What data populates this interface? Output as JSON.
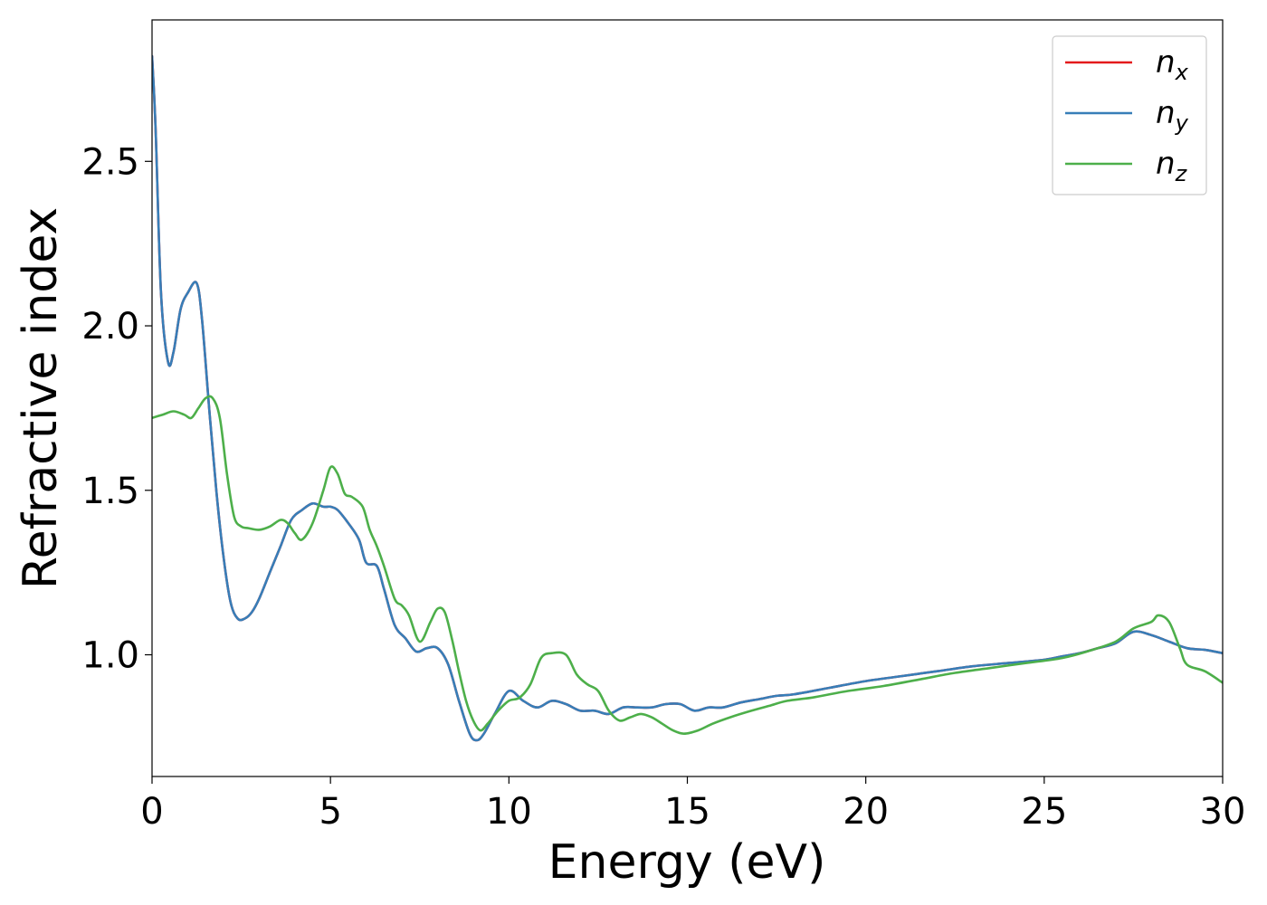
{
  "chart_data": {
    "type": "line",
    "title": "",
    "xlabel": "Energy (eV)",
    "ylabel": "Refractive index",
    "xlim": [
      0,
      30
    ],
    "ylim": [
      0.63,
      2.93
    ],
    "xticks": [
      "0",
      "5",
      "10",
      "15",
      "20",
      "25",
      "30"
    ],
    "yticks": [
      "1.0",
      "1.5",
      "2.0",
      "2.5"
    ],
    "grid": false,
    "legend_position": "top-right",
    "legend": [
      {
        "base": "n",
        "sub": "x",
        "color": "#e41a1c"
      },
      {
        "base": "n",
        "sub": "y",
        "color": "#377eb8"
      },
      {
        "base": "n",
        "sub": "z",
        "color": "#4daf4a"
      }
    ],
    "series": [
      {
        "name": "n_x",
        "color": "#e41a1c",
        "x": [
          0,
          0.1,
          0.25,
          0.45,
          0.6,
          0.8,
          1.0,
          1.25,
          1.4,
          1.6,
          1.8,
          2.0,
          2.2,
          2.4,
          2.6,
          2.8,
          3.0,
          3.3,
          3.6,
          3.9,
          4.2,
          4.5,
          4.8,
          5.0,
          5.2,
          5.5,
          5.8,
          6.0,
          6.3,
          6.5,
          6.8,
          7.1,
          7.4,
          7.7,
          8.0,
          8.3,
          8.6,
          8.9,
          9.1,
          9.3,
          9.6,
          10.0,
          10.4,
          10.8,
          11.2,
          11.6,
          12.0,
          12.4,
          12.8,
          13.2,
          13.6,
          14.0,
          14.4,
          14.8,
          15.2,
          15.6,
          16.0,
          16.5,
          17.0,
          17.5,
          18.0,
          19.0,
          20.0,
          21.0,
          22.0,
          23.0,
          24.0,
          25.0,
          25.5,
          26.0,
          26.5,
          27.0,
          27.5,
          28.0,
          28.5,
          29.0,
          29.5,
          30.0
        ],
        "y": [
          2.82,
          2.6,
          2.1,
          1.89,
          1.92,
          2.05,
          2.1,
          2.13,
          2.02,
          1.75,
          1.5,
          1.3,
          1.16,
          1.11,
          1.11,
          1.13,
          1.17,
          1.25,
          1.33,
          1.41,
          1.44,
          1.46,
          1.45,
          1.45,
          1.44,
          1.4,
          1.35,
          1.28,
          1.27,
          1.2,
          1.09,
          1.05,
          1.01,
          1.02,
          1.02,
          0.97,
          0.86,
          0.76,
          0.74,
          0.76,
          0.82,
          0.89,
          0.86,
          0.84,
          0.86,
          0.85,
          0.83,
          0.83,
          0.82,
          0.84,
          0.84,
          0.84,
          0.85,
          0.85,
          0.83,
          0.84,
          0.84,
          0.855,
          0.865,
          0.875,
          0.88,
          0.9,
          0.92,
          0.935,
          0.95,
          0.965,
          0.975,
          0.985,
          0.995,
          1.005,
          1.02,
          1.035,
          1.07,
          1.06,
          1.04,
          1.02,
          1.015,
          1.005
        ]
      },
      {
        "name": "n_y",
        "color": "#377eb8",
        "x": [
          0,
          0.1,
          0.25,
          0.45,
          0.6,
          0.8,
          1.0,
          1.25,
          1.4,
          1.6,
          1.8,
          2.0,
          2.2,
          2.4,
          2.6,
          2.8,
          3.0,
          3.3,
          3.6,
          3.9,
          4.2,
          4.5,
          4.8,
          5.0,
          5.2,
          5.5,
          5.8,
          6.0,
          6.3,
          6.5,
          6.8,
          7.1,
          7.4,
          7.7,
          8.0,
          8.3,
          8.6,
          8.9,
          9.1,
          9.3,
          9.6,
          10.0,
          10.4,
          10.8,
          11.2,
          11.6,
          12.0,
          12.4,
          12.8,
          13.2,
          13.6,
          14.0,
          14.4,
          14.8,
          15.2,
          15.6,
          16.0,
          16.5,
          17.0,
          17.5,
          18.0,
          19.0,
          20.0,
          21.0,
          22.0,
          23.0,
          24.0,
          25.0,
          25.5,
          26.0,
          26.5,
          27.0,
          27.5,
          28.0,
          28.5,
          29.0,
          29.5,
          30.0
        ],
        "y": [
          2.82,
          2.6,
          2.1,
          1.89,
          1.92,
          2.05,
          2.1,
          2.13,
          2.02,
          1.75,
          1.5,
          1.3,
          1.16,
          1.11,
          1.11,
          1.13,
          1.17,
          1.25,
          1.33,
          1.41,
          1.44,
          1.46,
          1.45,
          1.45,
          1.44,
          1.4,
          1.35,
          1.28,
          1.27,
          1.2,
          1.09,
          1.05,
          1.01,
          1.02,
          1.02,
          0.97,
          0.86,
          0.76,
          0.74,
          0.76,
          0.82,
          0.89,
          0.86,
          0.84,
          0.86,
          0.85,
          0.83,
          0.83,
          0.82,
          0.84,
          0.84,
          0.84,
          0.85,
          0.85,
          0.83,
          0.84,
          0.84,
          0.855,
          0.865,
          0.875,
          0.88,
          0.9,
          0.92,
          0.935,
          0.95,
          0.965,
          0.975,
          0.985,
          0.995,
          1.005,
          1.02,
          1.035,
          1.07,
          1.06,
          1.04,
          1.02,
          1.015,
          1.005
        ]
      },
      {
        "name": "n_z",
        "color": "#4daf4a",
        "x": [
          0,
          0.3,
          0.6,
          0.9,
          1.1,
          1.3,
          1.5,
          1.7,
          1.9,
          2.1,
          2.3,
          2.5,
          2.7,
          3.0,
          3.3,
          3.6,
          3.8,
          4.0,
          4.2,
          4.5,
          4.8,
          5.0,
          5.2,
          5.4,
          5.6,
          5.9,
          6.1,
          6.3,
          6.5,
          6.8,
          7.0,
          7.2,
          7.5,
          7.8,
          8.0,
          8.2,
          8.4,
          8.6,
          8.8,
          9.0,
          9.2,
          9.4,
          9.7,
          10.0,
          10.3,
          10.6,
          10.9,
          11.2,
          11.6,
          11.9,
          12.2,
          12.5,
          12.8,
          13.1,
          13.4,
          13.7,
          14.0,
          14.3,
          14.6,
          14.9,
          15.3,
          15.7,
          16.2,
          16.8,
          17.3,
          17.8,
          18.5,
          19.5,
          20.5,
          21.5,
          22.5,
          23.5,
          24.5,
          25.5,
          26.2,
          27.0,
          27.5,
          28.0,
          28.2,
          28.5,
          28.8,
          29.0,
          29.5,
          30.0
        ],
        "y": [
          1.72,
          1.73,
          1.74,
          1.73,
          1.72,
          1.75,
          1.78,
          1.78,
          1.72,
          1.55,
          1.42,
          1.39,
          1.385,
          1.38,
          1.39,
          1.41,
          1.4,
          1.37,
          1.35,
          1.4,
          1.5,
          1.57,
          1.55,
          1.49,
          1.48,
          1.45,
          1.38,
          1.33,
          1.27,
          1.17,
          1.15,
          1.12,
          1.04,
          1.1,
          1.14,
          1.13,
          1.05,
          0.95,
          0.86,
          0.8,
          0.77,
          0.79,
          0.83,
          0.86,
          0.87,
          0.91,
          0.99,
          1.005,
          1.0,
          0.94,
          0.91,
          0.89,
          0.83,
          0.8,
          0.81,
          0.82,
          0.81,
          0.79,
          0.77,
          0.76,
          0.77,
          0.79,
          0.81,
          0.83,
          0.845,
          0.86,
          0.87,
          0.89,
          0.905,
          0.925,
          0.945,
          0.96,
          0.975,
          0.99,
          1.01,
          1.04,
          1.08,
          1.1,
          1.12,
          1.1,
          1.02,
          0.97,
          0.95,
          0.915
        ]
      }
    ]
  }
}
